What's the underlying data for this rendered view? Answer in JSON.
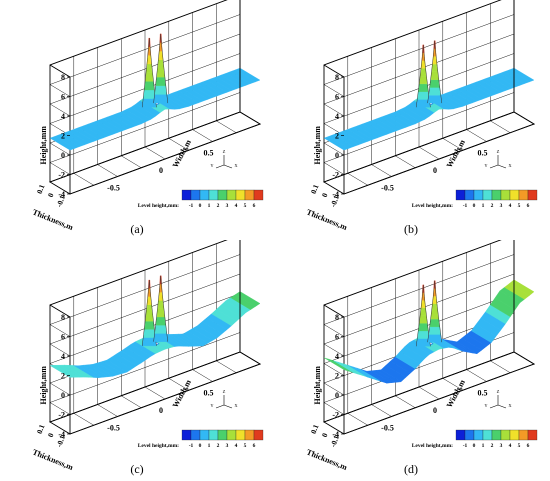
{
  "chart_data": [
    {
      "type": "surface3d",
      "panel_label": "(a)",
      "xlabel": "Width,m",
      "ylabel": "Thickness,m",
      "zlabel": "Height,mm",
      "x_ticks": [
        "-0.5",
        "0",
        "0.5"
      ],
      "y_ticks": [
        "0.1",
        "0",
        "-0.1"
      ],
      "z_ticks": [
        "-4",
        "-2",
        "0",
        "2",
        "4",
        "6",
        "8"
      ],
      "xlim": [
        -1,
        1
      ],
      "ylim": [
        -0.1,
        0.1
      ],
      "zlim": [
        -4,
        8
      ],
      "legend_title": "Level height,mm:",
      "legend_levels": [
        "-1",
        "0",
        "1",
        "2",
        "3",
        "4",
        "5",
        "6"
      ],
      "legend_colors": [
        "#0c1fd8",
        "#1c76ee",
        "#32b8f4",
        "#4ee0d6",
        "#4ad06c",
        "#a8e03a",
        "#f0e02a",
        "#f49a26",
        "#e03a1e"
      ],
      "axis_glyph": {
        "labels": [
          "Y",
          "Z",
          "X"
        ]
      },
      "surface_profile": {
        "x": [
          -1.0,
          -0.8,
          -0.6,
          -0.4,
          -0.25,
          -0.15,
          -0.08,
          -0.04,
          0.0,
          0.04,
          0.08,
          0.15,
          0.25,
          0.4,
          0.6,
          0.8,
          1.0
        ],
        "z": [
          0.5,
          0.5,
          0.5,
          0.5,
          0.5,
          0.6,
          0.8,
          1.0,
          1.1,
          1.0,
          0.8,
          0.6,
          0.5,
          0.5,
          0.5,
          0.5,
          0.5
        ]
      },
      "peaks": [
        {
          "x": -0.06,
          "height": 8
        },
        {
          "x": 0.06,
          "height": 8
        }
      ]
    },
    {
      "type": "surface3d",
      "panel_label": "(b)",
      "xlabel": "Width,m",
      "ylabel": "Thickness,m",
      "zlabel": "Height,mm",
      "x_ticks": [
        "-0.5",
        "0",
        "0.5"
      ],
      "y_ticks": [
        "0.1",
        "0",
        "-0.1"
      ],
      "z_ticks": [
        "-4",
        "-2",
        "0",
        "2",
        "4",
        "6",
        "8"
      ],
      "xlim": [
        -1,
        1
      ],
      "ylim": [
        -0.1,
        0.1
      ],
      "zlim": [
        -4,
        8
      ],
      "legend_title": "Level height,mm:",
      "legend_levels": [
        "-1",
        "0",
        "1",
        "2",
        "3",
        "4",
        "5",
        "6"
      ],
      "legend_colors": [
        "#0c1fd8",
        "#1c76ee",
        "#32b8f4",
        "#4ee0d6",
        "#4ad06c",
        "#a8e03a",
        "#f0e02a",
        "#f49a26",
        "#e03a1e"
      ],
      "axis_glyph": {
        "labels": [
          "Y",
          "Z",
          "X"
        ]
      },
      "surface_profile": {
        "x": [
          -1.0,
          -0.8,
          -0.6,
          -0.4,
          -0.25,
          -0.15,
          -0.08,
          -0.04,
          0.0,
          0.04,
          0.08,
          0.15,
          0.25,
          0.4,
          0.6,
          0.8,
          1.0
        ],
        "z": [
          0.5,
          0.5,
          0.5,
          0.5,
          0.5,
          0.6,
          0.8,
          1.0,
          1.1,
          1.0,
          0.8,
          0.6,
          0.5,
          0.5,
          0.5,
          0.5,
          0.5
        ]
      },
      "peaks": [
        {
          "x": -0.06,
          "height": 7.3
        },
        {
          "x": 0.06,
          "height": 7.3
        }
      ]
    },
    {
      "type": "surface3d",
      "panel_label": "(c)",
      "xlabel": "Width,m",
      "ylabel": "Thickness,m",
      "zlabel": "Height,mm",
      "x_ticks": [
        "-0.5",
        "0",
        "0.5"
      ],
      "y_ticks": [
        "0.1",
        "0",
        "-0.1"
      ],
      "z_ticks": [
        "-4",
        "-2",
        "0",
        "2",
        "4",
        "6",
        "8"
      ],
      "xlim": [
        -1,
        1
      ],
      "ylim": [
        -0.1,
        0.1
      ],
      "zlim": [
        -4,
        8
      ],
      "legend_title": "Level height,mm:",
      "legend_levels": [
        "-1",
        "0",
        "1",
        "2",
        "3",
        "4",
        "5",
        "6"
      ],
      "legend_colors": [
        "#0c1fd8",
        "#1c76ee",
        "#32b8f4",
        "#4ee0d6",
        "#4ad06c",
        "#a8e03a",
        "#f0e02a",
        "#f49a26",
        "#e03a1e"
      ],
      "axis_glyph": {
        "labels": [
          "Y",
          "Z",
          "X"
        ]
      },
      "surface_profile": {
        "x": [
          -1.0,
          -0.85,
          -0.7,
          -0.55,
          -0.4,
          -0.25,
          -0.12,
          0.0,
          0.12,
          0.25,
          0.4,
          0.55,
          0.7,
          0.85,
          1.0
        ],
        "z": [
          1.8,
          1.3,
          0.7,
          0.3,
          0.2,
          0.6,
          1.0,
          1.1,
          1.0,
          0.5,
          0.0,
          0.3,
          1.0,
          1.8,
          2.2
        ]
      },
      "peaks": [
        {
          "x": -0.06,
          "height": 7.8
        },
        {
          "x": 0.06,
          "height": 7.8
        }
      ]
    },
    {
      "type": "surface3d",
      "panel_label": "(d)",
      "xlabel": "Width,m",
      "ylabel": "Thickness,m",
      "zlabel": "Height,mm",
      "x_ticks": [
        "-0.5",
        "0",
        "0.5"
      ],
      "y_ticks": [
        "0.1",
        "0",
        "-0.1"
      ],
      "z_ticks": [
        "-4",
        "-2",
        "0",
        "2",
        "4",
        "6",
        "8"
      ],
      "xlim": [
        -1,
        1
      ],
      "ylim": [
        -0.1,
        0.1
      ],
      "zlim": [
        -4,
        8
      ],
      "legend_title": "Level height,mm:",
      "legend_levels": [
        "-1",
        "0",
        "1",
        "2",
        "3",
        "4",
        "5",
        "6"
      ],
      "legend_colors": [
        "#0c1fd8",
        "#1c76ee",
        "#32b8f4",
        "#4ee0d6",
        "#4ad06c",
        "#a8e03a",
        "#f0e02a",
        "#f49a26",
        "#e03a1e"
      ],
      "axis_glyph": {
        "labels": [
          "Y",
          "Z",
          "X"
        ]
      },
      "surface_profile": {
        "x": [
          -1.0,
          -0.85,
          -0.7,
          -0.55,
          -0.4,
          -0.25,
          -0.12,
          0.0,
          0.12,
          0.25,
          0.4,
          0.55,
          0.7,
          0.85,
          1.0
        ],
        "z": [
          2.6,
          1.6,
          0.6,
          -0.4,
          -0.8,
          0.0,
          0.9,
          1.1,
          0.9,
          0.0,
          -0.8,
          -0.2,
          1.2,
          2.8,
          3.4
        ]
      },
      "peaks": [
        {
          "x": -0.06,
          "height": 7.3
        },
        {
          "x": 0.06,
          "height": 7.3
        }
      ]
    }
  ]
}
